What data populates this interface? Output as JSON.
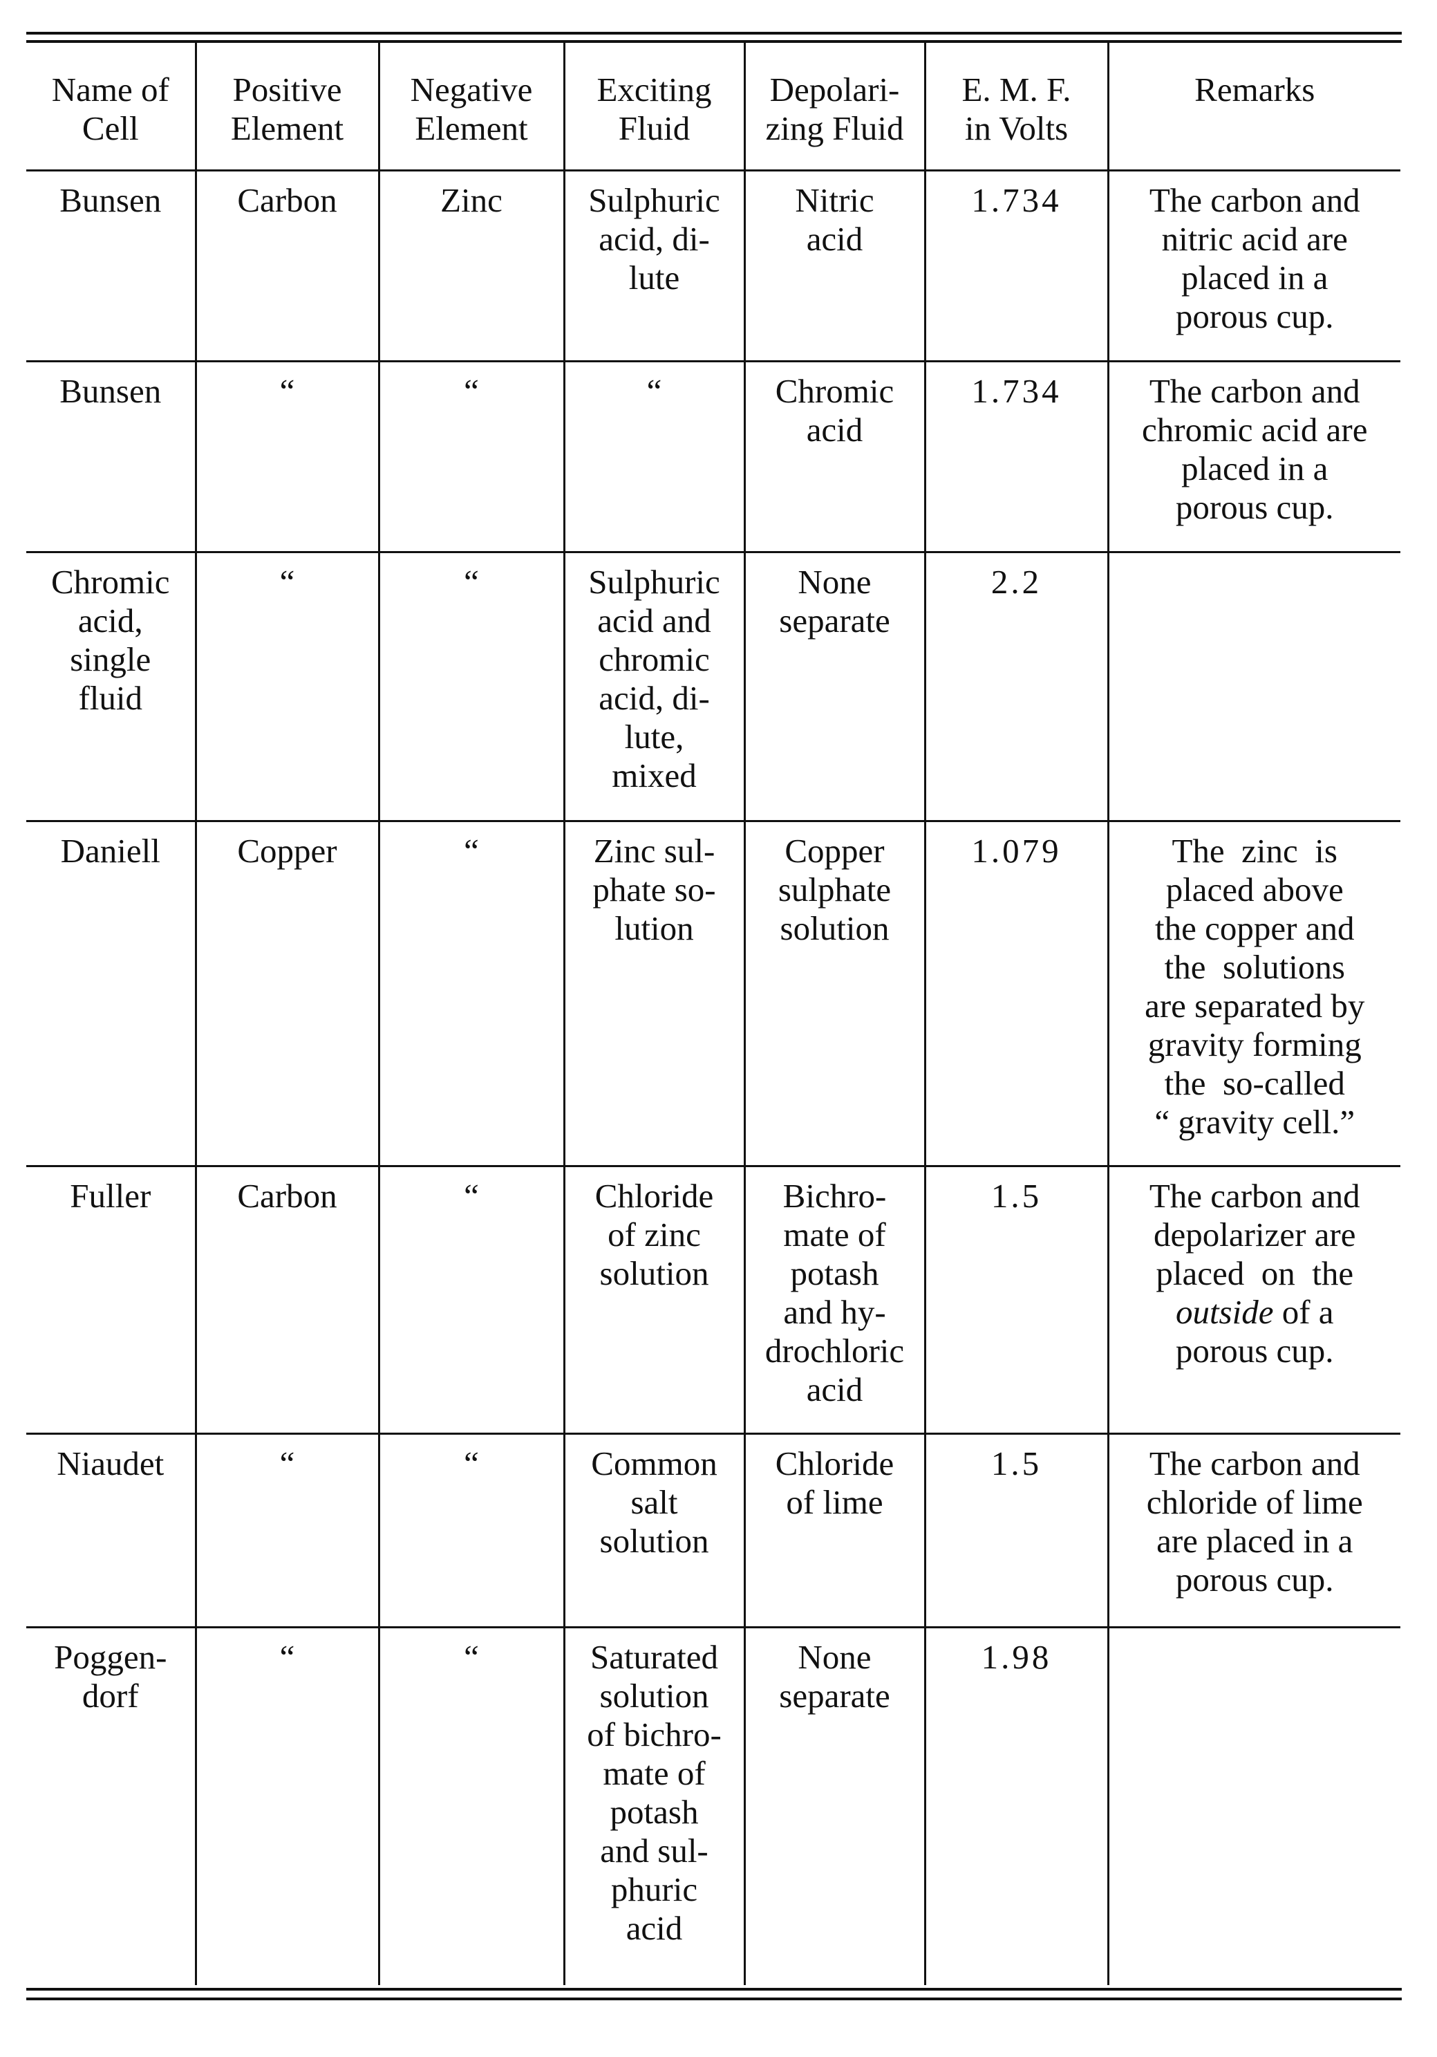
{
  "headers": [
    "Name of\nCell",
    "Positive\nElement",
    "Negative\nElement",
    "Exciting\nFluid",
    "Depolari-\nzing Fluid",
    "E. M. F.\nin Volts",
    "Remarks"
  ],
  "rows": [
    {
      "name": "Bunsen",
      "positive": "Carbon",
      "negative": "Zinc",
      "exciting": "Sulphuric\nacid, di-\nlute",
      "depolarizing": "Nitric\nacid",
      "emf": "1.734",
      "remarks": "The carbon and\nnitric acid are\nplaced in a\nporous cup."
    },
    {
      "name": "Bunsen",
      "positive": "“",
      "negative": "“",
      "exciting": "“",
      "depolarizing": "Chromic\nacid",
      "emf": "1.734",
      "remarks": "The carbon and\nchromic acid are\nplaced in a\nporous cup."
    },
    {
      "name": "Chromic\nacid,\nsingle\nfluid",
      "positive": "“",
      "negative": "“",
      "exciting": "Sulphuric\nacid and\nchromic\nacid, di-\nlute,\nmixed",
      "depolarizing": "None\nseparate",
      "emf": "2.2",
      "remarks": ""
    },
    {
      "name": "Daniell",
      "positive": "Copper",
      "negative": "“",
      "exciting": "Zinc sul-\nphate so-\nlution",
      "depolarizing": "Copper\nsulphate\nsolution",
      "emf": "1.079",
      "remarks": "The  zinc  is\nplaced above\nthe copper and\nthe  solutions\nare separated by\ngravity forming\nthe  so-called\n“ gravity cell.”"
    },
    {
      "name": "Fuller",
      "positive": "Carbon",
      "negative": "“",
      "exciting": "Chloride\nof zinc\nsolution",
      "depolarizing": "Bichro-\nmate of\npotash\nand hy-\ndrochloric\nacid",
      "emf": "1.5",
      "remarks": {
        "pre": "The carbon and\ndepolarizer are\nplaced  on  the\n",
        "em": "outside",
        "post": " of a\nporous cup."
      }
    },
    {
      "name": "Niaudet",
      "positive": "“",
      "negative": "“",
      "exciting": "Common\nsalt\nsolution",
      "depolarizing": "Chloride\nof lime",
      "emf": "1.5",
      "remarks": "The carbon and\nchloride of lime\nare placed in a\nporous cup."
    },
    {
      "name": "Poggen-\ndorf",
      "positive": "“",
      "negative": "“",
      "exciting": "Saturated\nsolution\nof bichro-\nmate of\npotash\nand sul-\nphuric\nacid",
      "depolarizing": "None\nseparate",
      "emf": "1.98",
      "remarks": ""
    }
  ]
}
